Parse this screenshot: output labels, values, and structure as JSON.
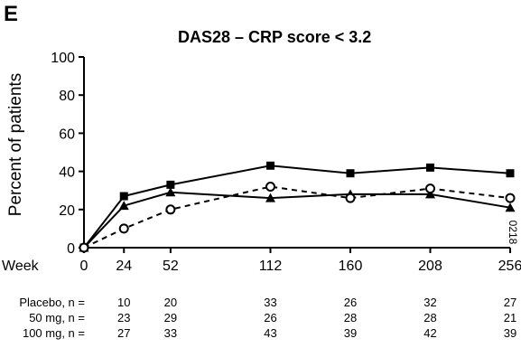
{
  "panel_label": "E",
  "footnote_code": "0218",
  "chart_data": {
    "type": "line",
    "title": "DAS28 – CRP score < 3.2",
    "ylabel": "Percent of patients",
    "xlabel": "Week",
    "x": [
      0,
      24,
      52,
      112,
      160,
      208,
      256
    ],
    "xticks": [
      "0",
      "24",
      "52",
      "112",
      "160",
      "208",
      "256"
    ],
    "yticks": [
      "0",
      "20",
      "40",
      "60",
      "80",
      "100"
    ],
    "ylim": [
      0,
      100
    ],
    "xlim": [
      0,
      256
    ],
    "grid": false,
    "series": [
      {
        "values": [
          0,
          27,
          33,
          43,
          39,
          42,
          39
        ],
        "marker": "filled-square",
        "line": "solid",
        "color": "#000000"
      },
      {
        "values": [
          0,
          22,
          29,
          26,
          28,
          28,
          21
        ],
        "marker": "filled-triangle",
        "line": "solid",
        "color": "#000000"
      },
      {
        "values": [
          0,
          10,
          20,
          32,
          26,
          31,
          26
        ],
        "marker": "open-circle",
        "line": "dashed",
        "color": "#000000"
      }
    ],
    "n_table": [
      {
        "label": "Placebo, n =",
        "values": [
          "10",
          "20",
          "33",
          "26",
          "32",
          "27"
        ]
      },
      {
        "label": "50 mg, n =",
        "values": [
          "23",
          "29",
          "26",
          "28",
          "28",
          "21"
        ]
      },
      {
        "label": "100 mg, n =",
        "values": [
          "27",
          "33",
          "43",
          "39",
          "42",
          "39"
        ]
      }
    ]
  }
}
